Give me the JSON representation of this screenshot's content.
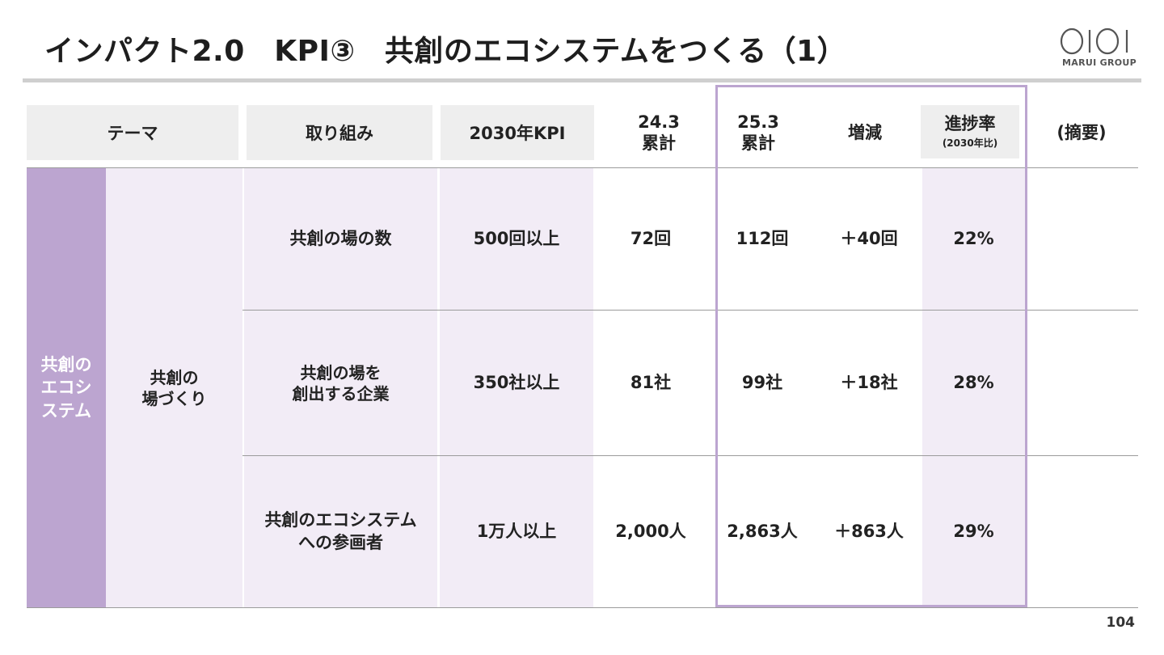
{
  "title": "インパクト2.0　KPI③　共創のエコシステムをつくる（1）",
  "logo": {
    "text": "MARUI GROUP"
  },
  "header": {
    "theme": "テーマ",
    "initiative": "取り組み",
    "kpi2030": "2030年KPI",
    "cum_24_3_line1": "24.3",
    "cum_24_3_line2": "累計",
    "cum_25_3_line1": "25.3",
    "cum_25_3_line2": "累計",
    "change": "増減",
    "progress": "進捗率",
    "progress_note": "(2030年比)",
    "summary": "(摘要)"
  },
  "theme_cell": {
    "line1": "共創の",
    "line2": "エコシ",
    "line3": "ステム"
  },
  "sub_theme": {
    "line1": "共創の",
    "line2": "場づくり"
  },
  "rows": [
    {
      "initiative_line1": "共創の場の数",
      "initiative_line2": "",
      "kpi": "500回以上",
      "cum_24_3": "72回",
      "cum_25_3": "112回",
      "change": "＋40回",
      "progress": "22%",
      "summary": ""
    },
    {
      "initiative_line1": "共創の場を",
      "initiative_line2": "創出する企業",
      "kpi": "350社以上",
      "cum_24_3": "81社",
      "cum_25_3": "99社",
      "change": "＋18社",
      "progress": "28%",
      "summary": ""
    },
    {
      "initiative_line1": "共創のエコシステム",
      "initiative_line2": "への参画者",
      "kpi": "1万人以上",
      "cum_24_3": "2,000人",
      "cum_25_3": "2,863人",
      "change": "＋863人",
      "progress": "29%",
      "summary": ""
    }
  ],
  "page_number": "104",
  "colors": {
    "theme_purple": "#bca5d0",
    "lavender_bg": "#f2ecf6",
    "header_gray": "#eeeeee"
  }
}
